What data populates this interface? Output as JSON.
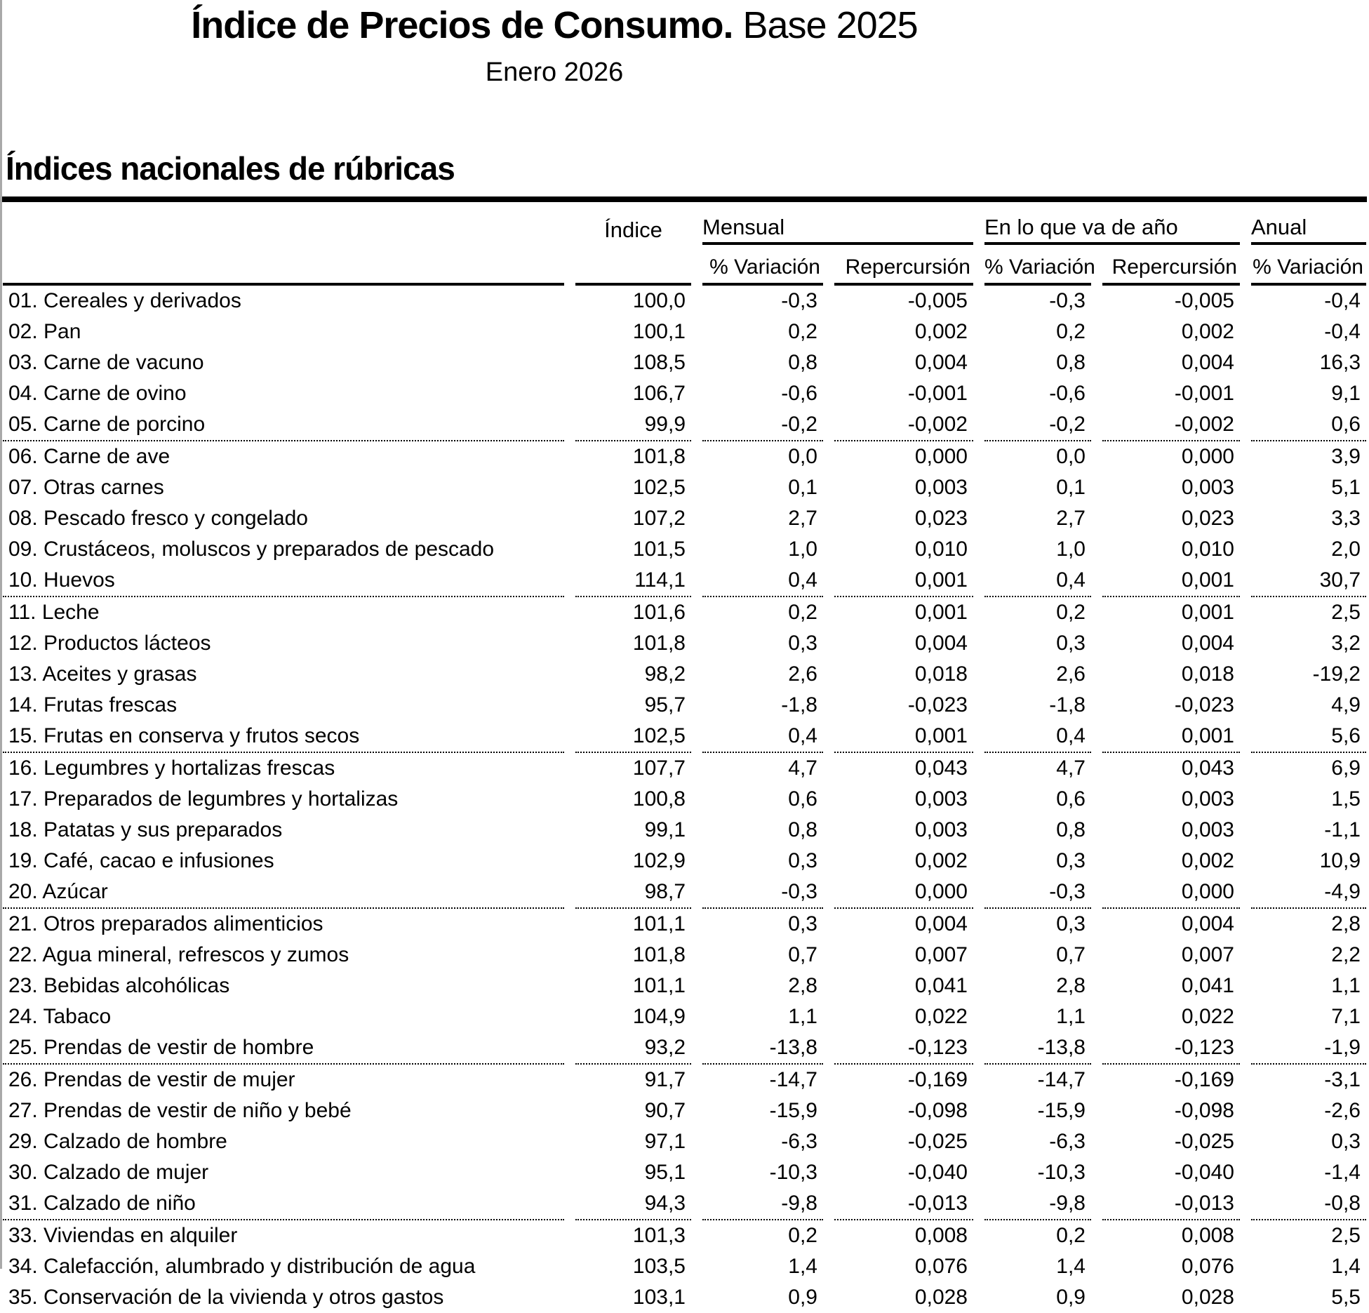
{
  "page": {
    "title_bold": "Índice de Precios de Consumo.",
    "title_regular": " Base 2025",
    "subtitle": "Enero 2026",
    "section_title": "Índices nacionales de rúbricas"
  },
  "colors": {
    "text": "#000000",
    "rule": "#000000",
    "page_edge_line": "#a9a9a9",
    "background": "#ffffff"
  },
  "table": {
    "col_groups": [
      {
        "label": "Índice",
        "span": 1
      },
      {
        "label": "Mensual",
        "span": 2
      },
      {
        "label": "En lo que va de año",
        "span": 2
      },
      {
        "label": "Anual",
        "span": 1
      }
    ],
    "subheaders": [
      "% Variación",
      "Repercursión",
      "% Variación",
      "Repercursión",
      "% Variación"
    ],
    "rows": [
      {
        "label": "01. Cereales y derivados",
        "values": [
          "100,0",
          "-0,3",
          "-0,005",
          "-0,3",
          "-0,005",
          "-0,4"
        ],
        "sep": false
      },
      {
        "label": "02. Pan",
        "values": [
          "100,1",
          "0,2",
          "0,002",
          "0,2",
          "0,002",
          "-0,4"
        ],
        "sep": false
      },
      {
        "label": "03. Carne de vacuno",
        "values": [
          "108,5",
          "0,8",
          "0,004",
          "0,8",
          "0,004",
          "16,3"
        ],
        "sep": false
      },
      {
        "label": "04. Carne de ovino",
        "values": [
          "106,7",
          "-0,6",
          "-0,001",
          "-0,6",
          "-0,001",
          "9,1"
        ],
        "sep": false
      },
      {
        "label": "05. Carne de porcino",
        "values": [
          "99,9",
          "-0,2",
          "-0,002",
          "-0,2",
          "-0,002",
          "0,6"
        ],
        "sep": true
      },
      {
        "label": "06. Carne de ave",
        "values": [
          "101,8",
          "0,0",
          "0,000",
          "0,0",
          "0,000",
          "3,9"
        ],
        "sep": false
      },
      {
        "label": "07. Otras carnes",
        "values": [
          "102,5",
          "0,1",
          "0,003",
          "0,1",
          "0,003",
          "5,1"
        ],
        "sep": false
      },
      {
        "label": "08. Pescado fresco y congelado",
        "values": [
          "107,2",
          "2,7",
          "0,023",
          "2,7",
          "0,023",
          "3,3"
        ],
        "sep": false
      },
      {
        "label": "09. Crustáceos, moluscos y preparados de pescado",
        "values": [
          "101,5",
          "1,0",
          "0,010",
          "1,0",
          "0,010",
          "2,0"
        ],
        "sep": false
      },
      {
        "label": "10. Huevos",
        "values": [
          "114,1",
          "0,4",
          "0,001",
          "0,4",
          "0,001",
          "30,7"
        ],
        "sep": true
      },
      {
        "label": "11. Leche",
        "values": [
          "101,6",
          "0,2",
          "0,001",
          "0,2",
          "0,001",
          "2,5"
        ],
        "sep": false
      },
      {
        "label": "12. Productos lácteos",
        "values": [
          "101,8",
          "0,3",
          "0,004",
          "0,3",
          "0,004",
          "3,2"
        ],
        "sep": false
      },
      {
        "label": "13. Aceites y grasas",
        "values": [
          "98,2",
          "2,6",
          "0,018",
          "2,6",
          "0,018",
          "-19,2"
        ],
        "sep": false
      },
      {
        "label": "14. Frutas frescas",
        "values": [
          "95,7",
          "-1,8",
          "-0,023",
          "-1,8",
          "-0,023",
          "4,9"
        ],
        "sep": false
      },
      {
        "label": "15. Frutas en conserva y frutos secos",
        "values": [
          "102,5",
          "0,4",
          "0,001",
          "0,4",
          "0,001",
          "5,6"
        ],
        "sep": true
      },
      {
        "label": "16. Legumbres y hortalizas frescas",
        "values": [
          "107,7",
          "4,7",
          "0,043",
          "4,7",
          "0,043",
          "6,9"
        ],
        "sep": false
      },
      {
        "label": "17. Preparados de legumbres y hortalizas",
        "values": [
          "100,8",
          "0,6",
          "0,003",
          "0,6",
          "0,003",
          "1,5"
        ],
        "sep": false
      },
      {
        "label": "18. Patatas y sus preparados",
        "values": [
          "99,1",
          "0,8",
          "0,003",
          "0,8",
          "0,003",
          "-1,1"
        ],
        "sep": false
      },
      {
        "label": "19. Café, cacao e infusiones",
        "values": [
          "102,9",
          "0,3",
          "0,002",
          "0,3",
          "0,002",
          "10,9"
        ],
        "sep": false
      },
      {
        "label": "20. Azúcar",
        "values": [
          "98,7",
          "-0,3",
          "0,000",
          "-0,3",
          "0,000",
          "-4,9"
        ],
        "sep": true
      },
      {
        "label": "21. Otros preparados alimenticios",
        "values": [
          "101,1",
          "0,3",
          "0,004",
          "0,3",
          "0,004",
          "2,8"
        ],
        "sep": false
      },
      {
        "label": "22. Agua mineral, refrescos y zumos",
        "values": [
          "101,8",
          "0,7",
          "0,007",
          "0,7",
          "0,007",
          "2,2"
        ],
        "sep": false
      },
      {
        "label": "23. Bebidas alcohólicas",
        "values": [
          "101,1",
          "2,8",
          "0,041",
          "2,8",
          "0,041",
          "1,1"
        ],
        "sep": false
      },
      {
        "label": "24. Tabaco",
        "values": [
          "104,9",
          "1,1",
          "0,022",
          "1,1",
          "0,022",
          "7,1"
        ],
        "sep": false
      },
      {
        "label": "25. Prendas de vestir de hombre",
        "values": [
          "93,2",
          "-13,8",
          "-0,123",
          "-13,8",
          "-0,123",
          "-1,9"
        ],
        "sep": true
      },
      {
        "label": "26. Prendas de vestir de mujer",
        "values": [
          "91,7",
          "-14,7",
          "-0,169",
          "-14,7",
          "-0,169",
          "-3,1"
        ],
        "sep": false
      },
      {
        "label": "27. Prendas de vestir de niño y bebé",
        "values": [
          "90,7",
          "-15,9",
          "-0,098",
          "-15,9",
          "-0,098",
          "-2,6"
        ],
        "sep": false
      },
      {
        "label": "29. Calzado de hombre",
        "values": [
          "97,1",
          "-6,3",
          "-0,025",
          "-6,3",
          "-0,025",
          "0,3"
        ],
        "sep": false
      },
      {
        "label": "30. Calzado de mujer",
        "values": [
          "95,1",
          "-10,3",
          "-0,040",
          "-10,3",
          "-0,040",
          "-1,4"
        ],
        "sep": false
      },
      {
        "label": "31. Calzado de niño",
        "values": [
          "94,3",
          "-9,8",
          "-0,013",
          "-9,8",
          "-0,013",
          "-0,8"
        ],
        "sep": true
      },
      {
        "label": "33. Viviendas en alquiler",
        "values": [
          "101,3",
          "0,2",
          "0,008",
          "0,2",
          "0,008",
          "2,5"
        ],
        "sep": false
      },
      {
        "label": "34. Calefacción, alumbrado y distribución de agua",
        "values": [
          "103,5",
          "1,4",
          "0,076",
          "1,4",
          "0,076",
          "1,4"
        ],
        "sep": false
      },
      {
        "label": "35. Conservación de la vivienda y otros gastos",
        "values": [
          "103,1",
          "0,9",
          "0,028",
          "0,9",
          "0,028",
          "5,5"
        ],
        "sep": false
      }
    ]
  }
}
